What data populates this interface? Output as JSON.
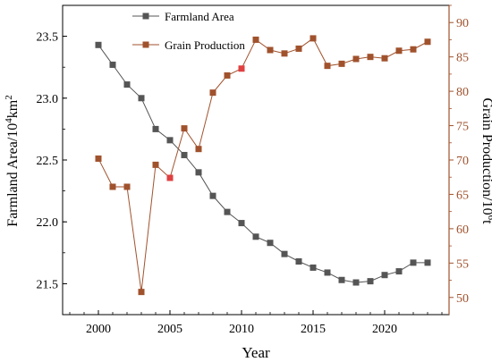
{
  "chart_data": {
    "type": "line",
    "title": "",
    "xlabel": "Year",
    "ylabel_left": "Farmland Area/10^4km^2",
    "ylabel_right": "Grain Production/10^6t",
    "xlim": [
      1997.5,
      2024.5
    ],
    "ylim_left": [
      21.25,
      23.75
    ],
    "ylim_right": [
      47.5,
      92.5
    ],
    "x_ticks": [
      2000,
      2005,
      2010,
      2015,
      2020
    ],
    "y_left_ticks": [
      "21.5",
      "22.0",
      "22.5",
      "23.0",
      "23.5"
    ],
    "y_right_ticks": [
      "50",
      "55",
      "60",
      "65",
      "70",
      "75",
      "80",
      "85",
      "90"
    ],
    "grid": false,
    "legend_position": "top-center",
    "x": [
      2000,
      2001,
      2002,
      2003,
      2004,
      2005,
      2006,
      2007,
      2008,
      2009,
      2010,
      2011,
      2012,
      2013,
      2014,
      2015,
      2016,
      2017,
      2018,
      2019,
      2020,
      2021,
      2022,
      2023
    ],
    "series": [
      {
        "name": "Farmland Area",
        "axis": "left",
        "color": "#555555",
        "marker": "square",
        "values": [
          23.43,
          23.27,
          23.11,
          23.0,
          22.75,
          22.66,
          22.54,
          22.4,
          22.21,
          22.08,
          21.99,
          21.88,
          21.83,
          21.74,
          21.68,
          21.63,
          21.59,
          21.53,
          21.51,
          21.52,
          21.57,
          21.6,
          21.67,
          21.67
        ]
      },
      {
        "name": "Grain Production",
        "axis": "right",
        "color": "#a0522d",
        "marker": "square",
        "highlight_color": "#e04040",
        "highlight_years": [
          2005,
          2010
        ],
        "values": [
          70.2,
          66.1,
          66.1,
          50.8,
          69.3,
          67.4,
          74.6,
          71.6,
          79.8,
          82.3,
          83.3,
          87.5,
          86.0,
          85.5,
          86.2,
          87.7,
          83.7,
          84.0,
          84.7,
          85.0,
          84.8,
          85.9,
          86.1,
          87.2
        ]
      }
    ]
  }
}
